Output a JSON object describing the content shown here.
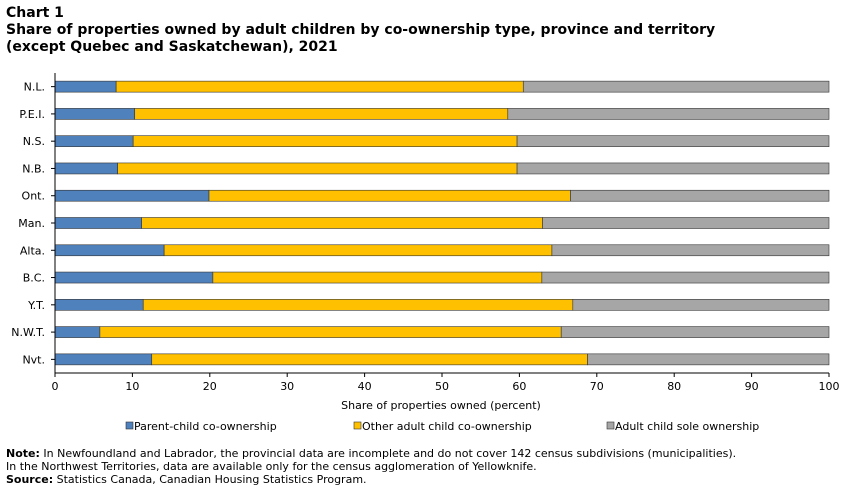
{
  "heading": {
    "chart_label": "Chart 1",
    "title": "Share of properties owned by adult children  by co-ownership type, province and territory\n(except Quebec and Saskatchewan), 2021"
  },
  "colors": {
    "parent_child": "#4f81bd",
    "other_adult": "#ffc000",
    "sole": "#a6a6a6",
    "outline": "#333333",
    "axis": "#000000"
  },
  "chart_data": {
    "type": "bar",
    "orientation": "horizontal",
    "stacked": true,
    "categories": [
      "N.L.",
      "P.E.I.",
      "N.S.",
      "N.B.",
      "Ont.",
      "Man.",
      "Alta.",
      "B.C.",
      "Y.T.",
      "N.W.T.",
      "Nvt."
    ],
    "series": [
      {
        "name": "Parent-child co-ownership",
        "color": "#4f81bd",
        "values": [
          7.9,
          10.3,
          10.1,
          8.1,
          19.9,
          11.2,
          14.1,
          20.4,
          11.4,
          5.8,
          12.5
        ]
      },
      {
        "name": "Other adult child co-ownership",
        "color": "#ffc000",
        "values": [
          52.6,
          48.2,
          49.6,
          51.6,
          46.7,
          51.8,
          50.1,
          42.5,
          55.5,
          59.6,
          56.3
        ]
      },
      {
        "name": "Adult child sole ownership",
        "color": "#a6a6a6",
        "values": [
          39.5,
          41.5,
          40.3,
          40.3,
          33.4,
          37.0,
          35.8,
          37.1,
          33.1,
          34.6,
          31.2
        ]
      }
    ],
    "xlabel": "Share of properties owned (percent)",
    "ylabel": "",
    "xlim": [
      0,
      100
    ],
    "xticks": [
      0,
      10,
      20,
      30,
      40,
      50,
      60,
      70,
      80,
      90,
      100
    ],
    "grid": false,
    "legend_position": "bottom"
  },
  "notes": {
    "note_label": "Note:",
    "note_line1": " In Newfoundland and Labrador, the provincial data are incomplete and do not cover 142 census subdivisions (municipalities).",
    "note_line2": "In the Northwest Territories, data are available only for the census agglomeration of Yellowknife.",
    "source_label": "Source:",
    "source_text": " Statistics Canada, Canadian Housing Statistics Program."
  }
}
